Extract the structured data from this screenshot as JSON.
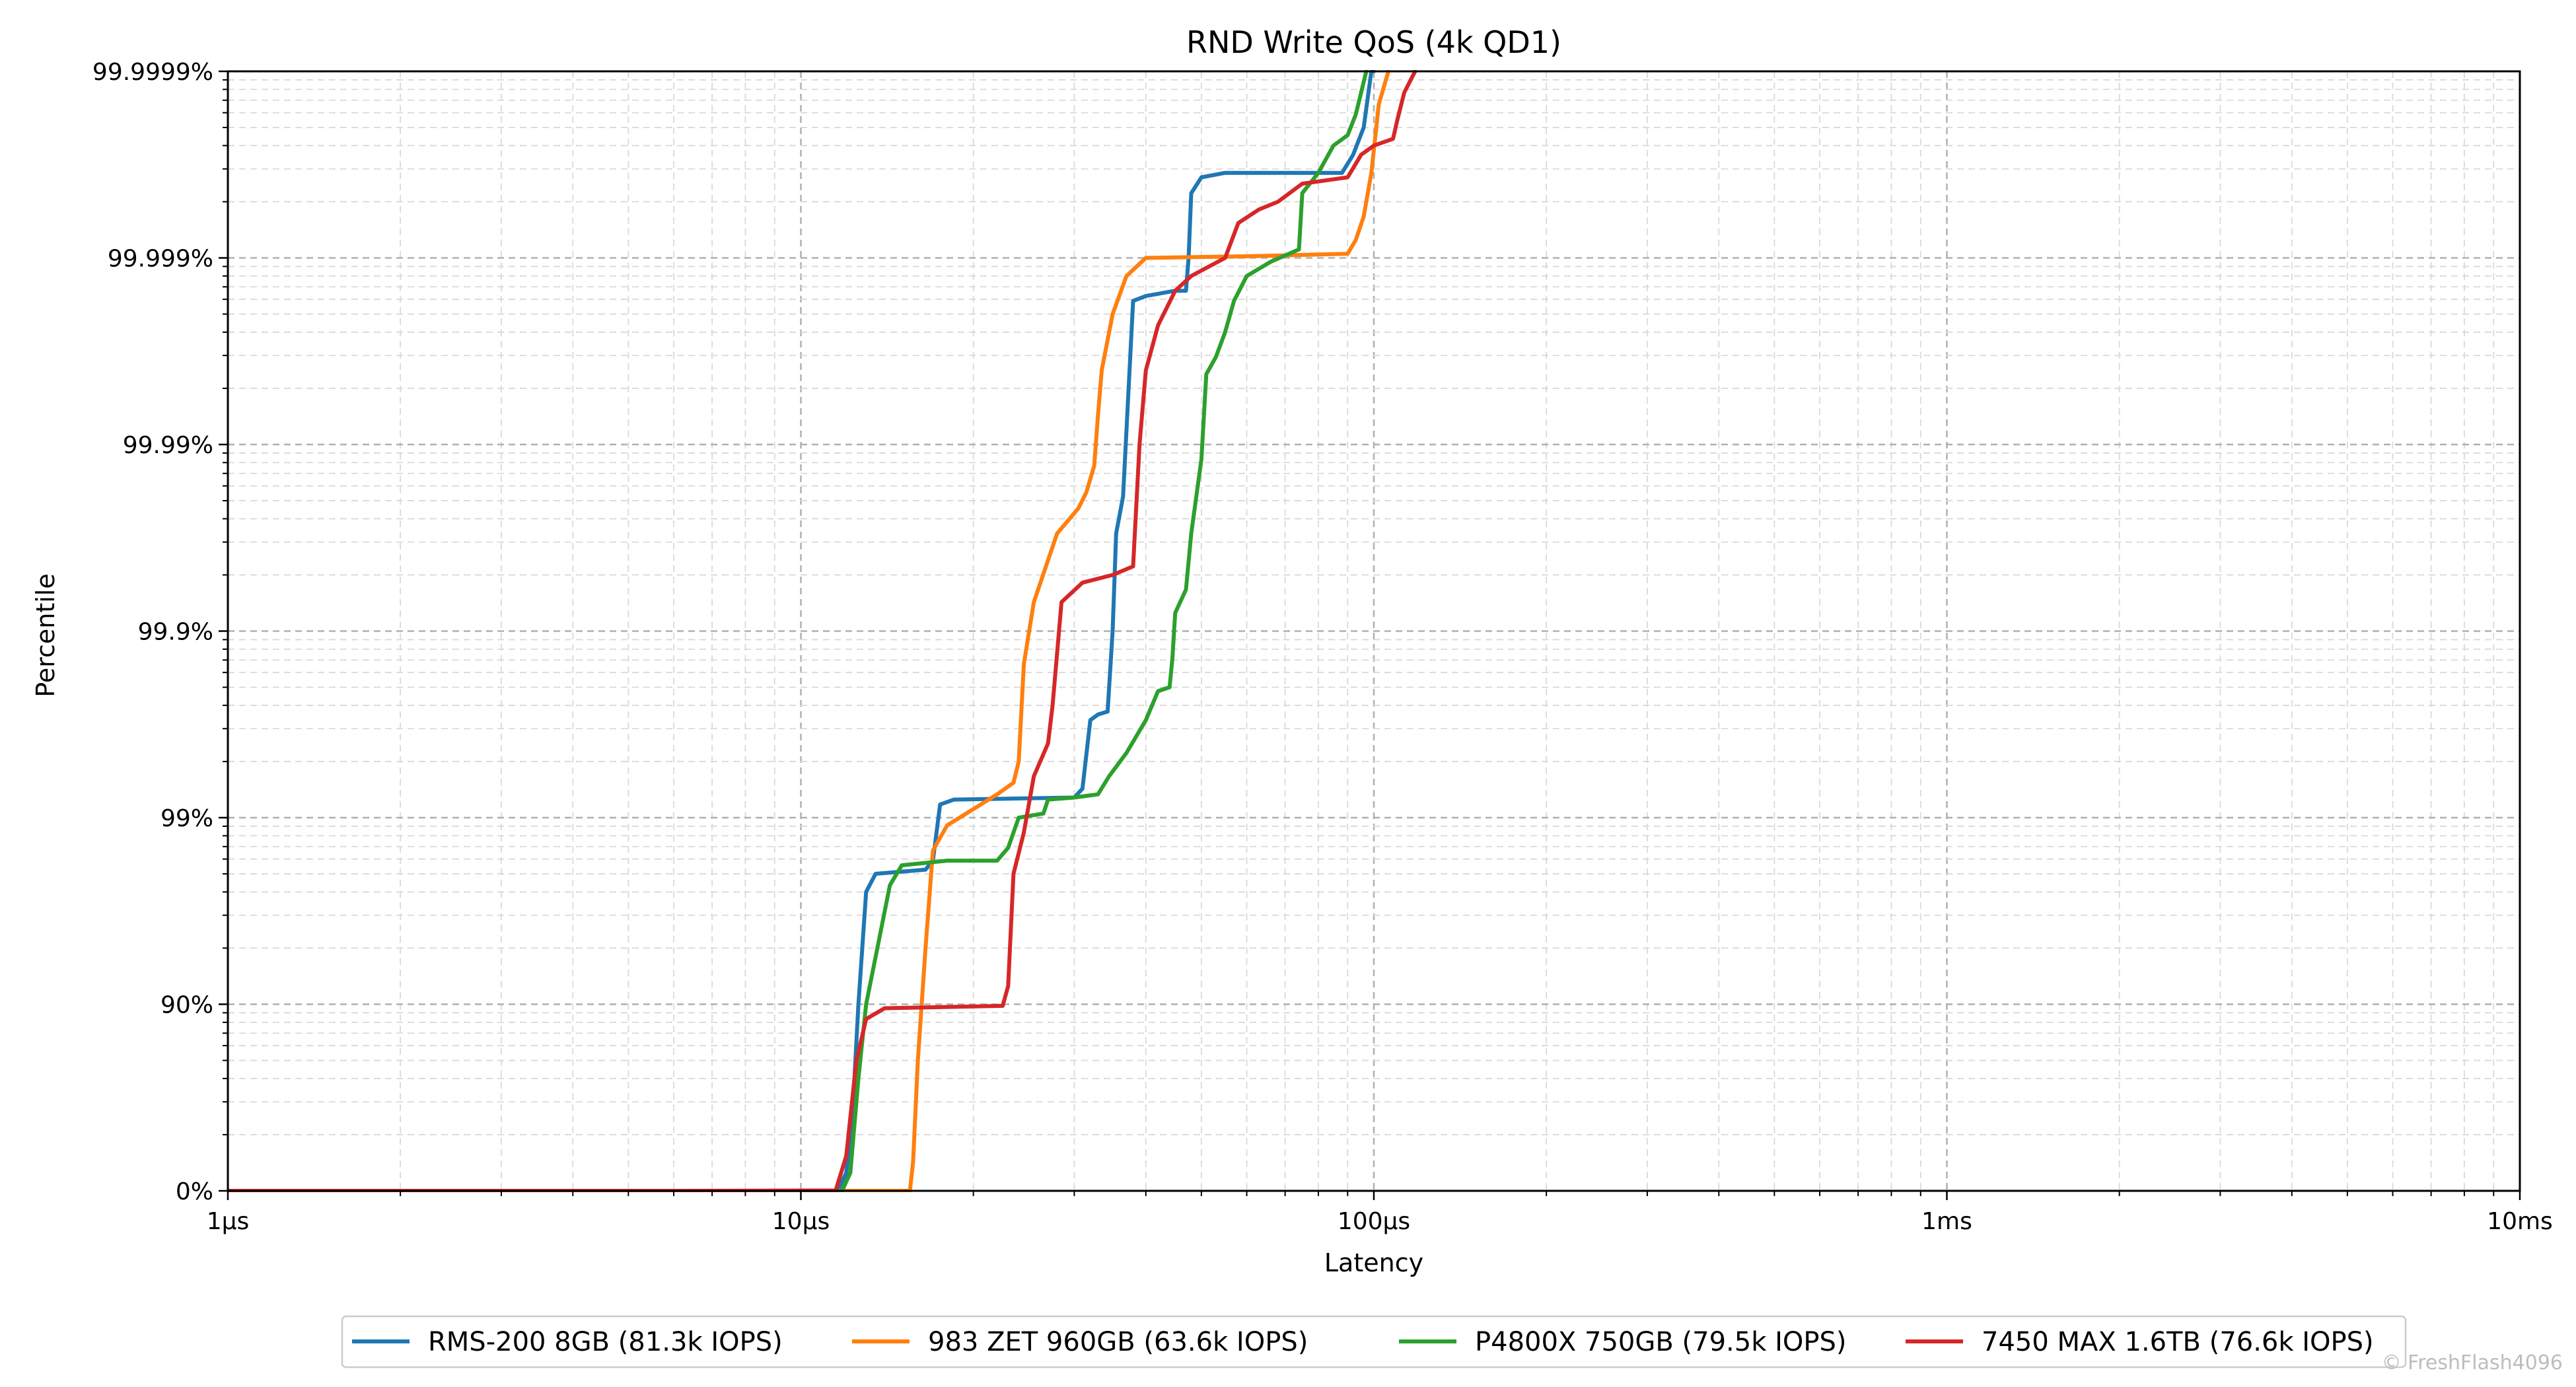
{
  "chart_data": {
    "type": "line",
    "title": "RND Write QoS (4k QD1)",
    "xlabel": "Latency",
    "ylabel": "Percentile",
    "x_scale": "log",
    "x_unit": "µs",
    "xlim": [
      1,
      10000
    ],
    "x_ticks": [
      {
        "value": 1,
        "label": "1µs"
      },
      {
        "value": 10,
        "label": "10µs"
      },
      {
        "value": 100,
        "label": "100µs"
      },
      {
        "value": 1000,
        "label": "1ms"
      },
      {
        "value": 10000,
        "label": "10ms"
      }
    ],
    "y_scale": "percentile-nines",
    "ylim": [
      0,
      99.9999
    ],
    "y_ticks": [
      {
        "value": 0,
        "label": "0%"
      },
      {
        "value": 90,
        "label": "90%"
      },
      {
        "value": 99,
        "label": "99%"
      },
      {
        "value": 99.9,
        "label": "99.9%"
      },
      {
        "value": 99.99,
        "label": "99.99%"
      },
      {
        "value": 99.999,
        "label": "99.999%"
      },
      {
        "value": 99.9999,
        "label": "99.9999%"
      }
    ],
    "grid": true,
    "legend_position": "bottom-center",
    "series": [
      {
        "name": "RMS-200 8GB (81.3k IOPS)",
        "color": "#1f77b4",
        "points": [
          [
            1,
            0
          ],
          [
            10,
            0
          ],
          [
            11.6,
            0.5
          ],
          [
            12.0,
            20
          ],
          [
            12.3,
            60
          ],
          [
            12.6,
            90
          ],
          [
            13.0,
            97.5
          ],
          [
            13.5,
            98.0
          ],
          [
            16.5,
            98.1
          ],
          [
            17.0,
            98.3
          ],
          [
            17.5,
            99.15
          ],
          [
            18.5,
            99.2
          ],
          [
            30,
            99.22
          ],
          [
            31,
            99.3
          ],
          [
            32,
            99.7
          ],
          [
            33,
            99.72
          ],
          [
            34.3,
            99.73
          ],
          [
            35,
            99.9
          ],
          [
            35.5,
            99.97
          ],
          [
            36.5,
            99.981
          ],
          [
            38,
            99.9983
          ],
          [
            40,
            99.9984
          ],
          [
            45,
            99.9985
          ],
          [
            47,
            99.9985
          ],
          [
            47.5,
            99.999
          ],
          [
            48,
            99.99955
          ],
          [
            50,
            99.99963
          ],
          [
            55,
            99.99965
          ],
          [
            70,
            99.99965
          ],
          [
            88,
            99.99965
          ],
          [
            92,
            99.99972
          ],
          [
            96,
            99.9998
          ],
          [
            99,
            99.9999
          ],
          [
            100,
            99.9999
          ]
        ]
      },
      {
        "name": "983 ZET 960GB (63.6k IOPS)",
        "color": "#ff7f0e",
        "points": [
          [
            1,
            0
          ],
          [
            15.5,
            0
          ],
          [
            15.7,
            30
          ],
          [
            16.0,
            80
          ],
          [
            16.5,
            95
          ],
          [
            17.0,
            98.5
          ],
          [
            18.0,
            98.9
          ],
          [
            20.0,
            99.1
          ],
          [
            22.0,
            99.25
          ],
          [
            23.5,
            99.35
          ],
          [
            24.0,
            99.5
          ],
          [
            24.5,
            99.85
          ],
          [
            25.5,
            99.93
          ],
          [
            28,
            99.97
          ],
          [
            30.5,
            99.978
          ],
          [
            31.5,
            99.982
          ],
          [
            32.5,
            99.987
          ],
          [
            33.0,
            99.993
          ],
          [
            33.5,
            99.996
          ],
          [
            35,
            99.998
          ],
          [
            37,
            99.99875
          ],
          [
            40,
            99.999
          ],
          [
            60,
            99.99902
          ],
          [
            90,
            99.99905
          ],
          [
            93,
            99.9992
          ],
          [
            96,
            99.9994
          ],
          [
            99,
            99.99965
          ],
          [
            102,
            99.99985
          ],
          [
            106,
            99.9999
          ]
        ]
      },
      {
        "name": "P4800X 750GB (79.5k IOPS)",
        "color": "#2ca02c",
        "points": [
          [
            1,
            0
          ],
          [
            11.8,
            0
          ],
          [
            12.2,
            20
          ],
          [
            12.6,
            75
          ],
          [
            13.0,
            90
          ],
          [
            13.6,
            95
          ],
          [
            14.3,
            97.7
          ],
          [
            15.0,
            98.2
          ],
          [
            18,
            98.3
          ],
          [
            22,
            98.3
          ],
          [
            23,
            98.55
          ],
          [
            24,
            99.0
          ],
          [
            26.5,
            99.05
          ],
          [
            27,
            99.2
          ],
          [
            30,
            99.22
          ],
          [
            33,
            99.25
          ],
          [
            34.5,
            99.4
          ],
          [
            37,
            99.55
          ],
          [
            40,
            99.7
          ],
          [
            42,
            99.79
          ],
          [
            44,
            99.8
          ],
          [
            44.5,
            99.86
          ],
          [
            45,
            99.92
          ],
          [
            47,
            99.94
          ],
          [
            48,
            99.97
          ],
          [
            50,
            99.988
          ],
          [
            51,
            99.9958
          ],
          [
            53,
            99.9966
          ],
          [
            55,
            99.9975
          ],
          [
            57,
            99.9983
          ],
          [
            60,
            99.99875
          ],
          [
            66,
            99.99895
          ],
          [
            74,
            99.9991
          ],
          [
            75,
            99.99955
          ],
          [
            80,
            99.99965
          ],
          [
            85,
            99.99975
          ],
          [
            90,
            99.99978
          ],
          [
            93,
            99.99983
          ],
          [
            95,
            99.99987
          ],
          [
            97,
            99.9999
          ]
        ]
      },
      {
        "name": "7450 MAX 1.6TB (76.6k IOPS)",
        "color": "#d62728",
        "points": [
          [
            1,
            0
          ],
          [
            6,
            0
          ],
          [
            11.5,
            0.5
          ],
          [
            12.0,
            35
          ],
          [
            12.5,
            80
          ],
          [
            13.0,
            88
          ],
          [
            14.0,
            89.5
          ],
          [
            22.5,
            89.8
          ],
          [
            23.0,
            92
          ],
          [
            23.5,
            98.0
          ],
          [
            24.5,
            98.8
          ],
          [
            25.5,
            99.4
          ],
          [
            27,
            99.6
          ],
          [
            27.5,
            99.75
          ],
          [
            28.5,
            99.93
          ],
          [
            31,
            99.945
          ],
          [
            35,
            99.95
          ],
          [
            38,
            99.955
          ],
          [
            39,
            99.99
          ],
          [
            40,
            99.996
          ],
          [
            42,
            99.9977
          ],
          [
            45,
            99.9985
          ],
          [
            48,
            99.99875
          ],
          [
            55,
            99.999
          ],
          [
            58,
            99.99935
          ],
          [
            63,
            99.99945
          ],
          [
            68,
            99.9995
          ],
          [
            75,
            99.9996
          ],
          [
            90,
            99.99963
          ],
          [
            95,
            99.99972
          ],
          [
            100,
            99.99975
          ],
          [
            108,
            99.99977
          ],
          [
            110,
            99.99982
          ],
          [
            113,
            99.99987
          ],
          [
            118,
            99.9999
          ]
        ]
      }
    ]
  },
  "watermark": "© FreshFlash4096"
}
